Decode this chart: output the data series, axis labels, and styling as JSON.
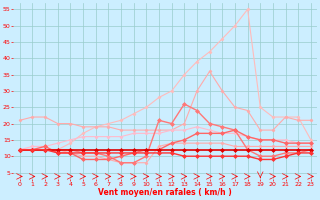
{
  "x": [
    0,
    1,
    2,
    3,
    4,
    5,
    6,
    7,
    8,
    9,
    10,
    11,
    12,
    13,
    14,
    15,
    16,
    17,
    18,
    19,
    20,
    21,
    22,
    23
  ],
  "series": [
    {
      "name": "rafales_light",
      "color": "#ffbbbb",
      "lw": 0.8,
      "marker": "D",
      "ms": 1.5,
      "y": [
        12,
        12,
        12,
        12,
        14,
        17,
        19,
        20,
        21,
        23,
        25,
        28,
        30,
        35,
        39,
        42,
        46,
        50,
        55,
        25,
        22,
        22,
        22,
        15
      ]
    },
    {
      "name": "moyen_light",
      "color": "#ffaaaa",
      "lw": 0.8,
      "marker": "D",
      "ms": 1.5,
      "y": [
        21,
        22,
        22,
        20,
        20,
        19,
        19,
        19,
        18,
        18,
        18,
        18,
        18,
        20,
        30,
        36,
        30,
        25,
        24,
        18,
        18,
        22,
        21,
        21
      ]
    },
    {
      "name": "line_pink1",
      "color": "#ffbbcc",
      "lw": 0.8,
      "marker": "D",
      "ms": 1.5,
      "y": [
        12,
        13,
        13,
        14,
        15,
        16,
        16,
        16,
        16,
        17,
        17,
        17,
        18,
        18,
        19,
        18,
        17,
        17,
        16,
        15,
        15,
        15,
        14,
        14
      ]
    },
    {
      "name": "line_pink2",
      "color": "#ffaaaa",
      "lw": 0.8,
      "marker": "D",
      "ms": 1.5,
      "y": [
        12,
        12,
        12,
        12,
        11,
        10,
        10,
        9,
        8,
        8,
        8,
        13,
        14,
        14,
        14,
        14,
        14,
        13,
        13,
        13,
        13,
        13,
        13,
        13
      ]
    },
    {
      "name": "line_med1",
      "color": "#ff7777",
      "lw": 1.0,
      "marker": "D",
      "ms": 2.0,
      "y": [
        12,
        12,
        12,
        12,
        12,
        11,
        11,
        10,
        8,
        8,
        10,
        21,
        20,
        26,
        24,
        20,
        19,
        18,
        12,
        10,
        10,
        11,
        11,
        12
      ]
    },
    {
      "name": "line_med2",
      "color": "#ff6666",
      "lw": 1.0,
      "marker": "D",
      "ms": 2.0,
      "y": [
        12,
        12,
        13,
        11,
        11,
        9,
        9,
        9,
        10,
        11,
        12,
        12,
        14,
        15,
        17,
        17,
        17,
        18,
        16,
        15,
        15,
        14,
        14,
        14
      ]
    },
    {
      "name": "line_dark1",
      "color": "#dd0000",
      "lw": 1.2,
      "marker": "D",
      "ms": 2.0,
      "y": [
        12,
        12,
        12,
        12,
        12,
        12,
        12,
        12,
        12,
        12,
        12,
        12,
        12,
        12,
        12,
        12,
        12,
        12,
        12,
        12,
        12,
        12,
        12,
        12
      ]
    },
    {
      "name": "line_dark2",
      "color": "#ff3333",
      "lw": 1.0,
      "marker": "D",
      "ms": 2.0,
      "y": [
        12,
        12,
        12,
        11,
        11,
        11,
        11,
        11,
        11,
        11,
        11,
        11,
        11,
        10,
        10,
        10,
        10,
        10,
        10,
        9,
        9,
        10,
        11,
        11
      ]
    }
  ],
  "wind_arrows": {
    "y": 3.8,
    "down_idx": 19,
    "color": "#ff0000"
  },
  "xlabel": "Vent moyen/en rafales ( km/h )",
  "xlim": [
    -0.5,
    23.5
  ],
  "ylim": [
    3,
    57
  ],
  "yticks": [
    5,
    10,
    15,
    20,
    25,
    30,
    35,
    40,
    45,
    50,
    55
  ],
  "xticks": [
    0,
    1,
    2,
    3,
    4,
    5,
    6,
    7,
    8,
    9,
    10,
    11,
    12,
    13,
    14,
    15,
    16,
    17,
    18,
    19,
    20,
    21,
    22,
    23
  ],
  "bg_color": "#cceeff",
  "grid_color": "#99cccc",
  "tick_color": "#ff0000",
  "label_color": "#ff0000"
}
